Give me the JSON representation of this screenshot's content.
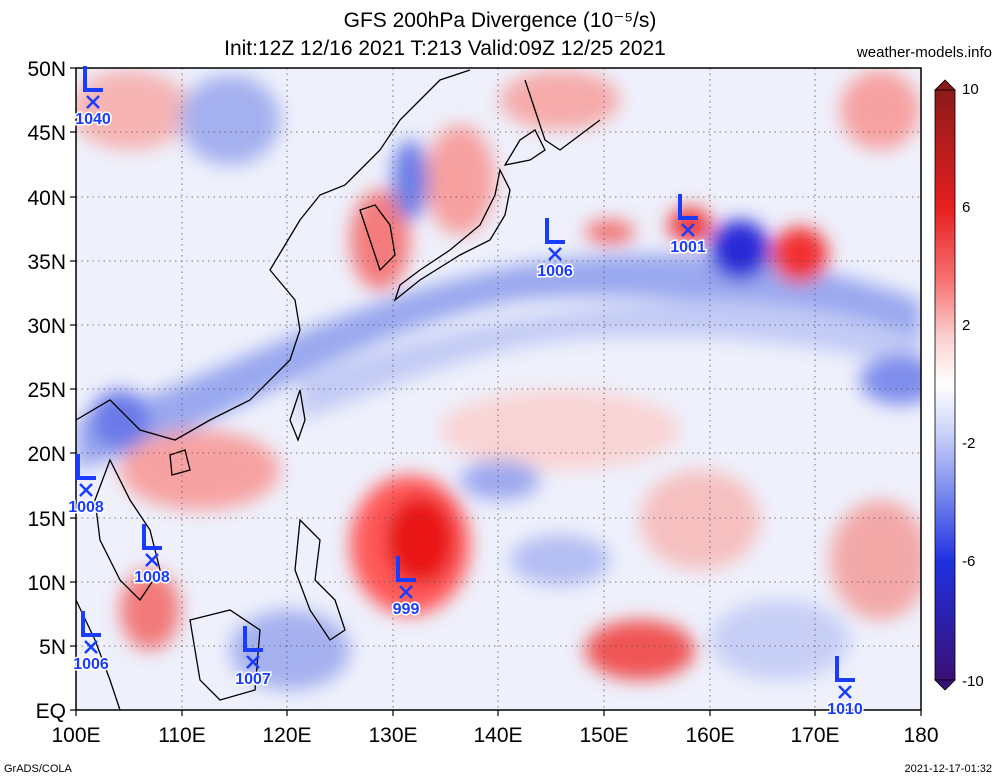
{
  "title_line1": "GFS 200hPa Divergence (10⁻⁵/s)",
  "title_line2": "Init:12Z 12/16 2021 T:213 Valid:09Z 12/25 2021",
  "site": "weather-models.info",
  "footer_left": "GrADS/COLA",
  "footer_right": "2021-12-17-01:32",
  "lon_labels": [
    "100E",
    "110E",
    "120E",
    "130E",
    "140E",
    "150E",
    "160E",
    "170E",
    "180"
  ],
  "lat_labels": [
    "50N",
    "45N",
    "40N",
    "35N",
    "30N",
    "25N",
    "20N",
    "15N",
    "10N",
    "5N",
    "EQ"
  ],
  "colorbar": {
    "labels": [
      "10",
      "6",
      "2",
      "-2",
      "-6",
      "-10"
    ],
    "colors": [
      "#8c1a1a",
      "#c61d1d",
      "#f02020",
      "#f76060",
      "#f9a0a0",
      "#fbd5d5",
      "#ffffff",
      "#d7dcfa",
      "#a8b4f4",
      "#7080ee",
      "#3040e6",
      "#1010c8",
      "#38107a"
    ]
  },
  "lows": [
    {
      "label": "1040"
    },
    {
      "label": "1006"
    },
    {
      "label": "1001"
    },
    {
      "label": "1008"
    },
    {
      "label": "1008"
    },
    {
      "label": "999"
    },
    {
      "label": "1006"
    },
    {
      "label": "1007"
    },
    {
      "label": "1010"
    }
  ],
  "low_color": "#1a3cff"
}
